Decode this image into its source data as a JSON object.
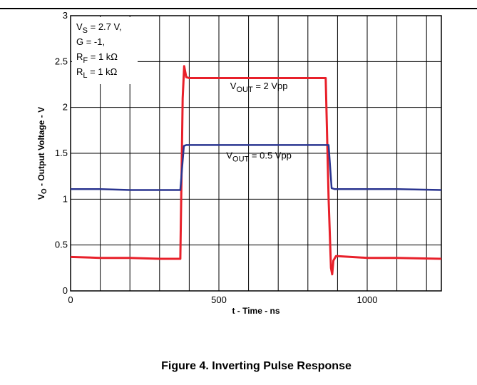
{
  "figure": {
    "caption": "Figure 4. Inverting Pulse Response"
  },
  "chart_data": {
    "type": "line",
    "xlabel": "t - Time - ns",
    "ylabel_main": "V",
    "ylabel_sub": "O",
    "ylabel_rest": " - Output Voltage - V",
    "xlim": [
      0,
      1250
    ],
    "ylim": [
      0,
      3
    ],
    "x_ticks": [
      0,
      500,
      1000
    ],
    "y_ticks": [
      0,
      0.5,
      1,
      1.5,
      2,
      2.5,
      3
    ],
    "grid": true,
    "conditions": [
      {
        "main": "V",
        "sub": "S",
        "rest": " = 2.7 V,"
      },
      {
        "main": "G = -1,",
        "sub": "",
        "rest": ""
      },
      {
        "main": "R",
        "sub": "F",
        "rest": " = 1 kΩ"
      },
      {
        "main": "R",
        "sub": "L",
        "rest": " = 1 kΩ"
      }
    ],
    "annotations": [
      {
        "main": "V",
        "sub": "OUT",
        "rest": " = 2 Vpp",
        "x": 635,
        "y": 2.2
      },
      {
        "main": "V",
        "sub": "OUT",
        "rest": " = 0.5 Vpp",
        "x": 635,
        "y": 1.44
      }
    ],
    "series": [
      {
        "color": "#e8202a",
        "x": [
          0,
          100,
          200,
          300,
          370,
          378,
          383,
          390,
          400,
          500,
          600,
          700,
          800,
          860,
          870,
          878,
          882,
          886,
          895,
          1000,
          1100,
          1250
        ],
        "y": [
          0.37,
          0.36,
          0.36,
          0.35,
          0.35,
          2.1,
          2.45,
          2.33,
          2.32,
          2.32,
          2.32,
          2.32,
          2.32,
          2.32,
          1.0,
          0.25,
          0.18,
          0.33,
          0.38,
          0.36,
          0.36,
          0.35
        ]
      },
      {
        "color": "#2a3590",
        "x": [
          0,
          100,
          200,
          300,
          370,
          382,
          390,
          500,
          600,
          700,
          800,
          870,
          880,
          890,
          1000,
          1100,
          1250
        ],
        "y": [
          1.11,
          1.11,
          1.1,
          1.1,
          1.1,
          1.58,
          1.59,
          1.59,
          1.59,
          1.59,
          1.59,
          1.59,
          1.12,
          1.11,
          1.11,
          1.11,
          1.1
        ]
      }
    ]
  }
}
